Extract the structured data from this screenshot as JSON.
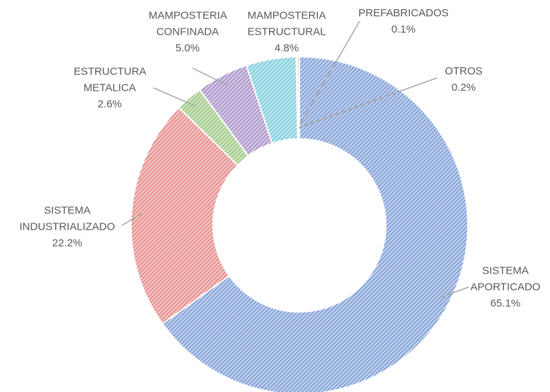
{
  "chart_data": {
    "type": "donut",
    "categories": [
      "SISTEMA APORTICADO",
      "SISTEMA INDUSTRIALIZADO",
      "ESTRUCTURA METALICA",
      "MAMPOSTERIA CONFINADA",
      "MAMPOSTERIA ESTRUCTURAL",
      "PREFABRICADOS",
      "OTROS"
    ],
    "values": [
      65.1,
      22.2,
      2.6,
      5.0,
      4.8,
      0.1,
      0.2
    ],
    "value_labels": [
      "65.1%",
      "22.2%",
      "2.6%",
      "5.0%",
      "4.8%",
      "0.1%",
      "0.2%"
    ],
    "colors": [
      "#4472c4",
      "#d9534f",
      "#70ad47",
      "#7e5fae",
      "#3fb6cc",
      "#ed7d31",
      "#a5a5a5"
    ]
  }
}
